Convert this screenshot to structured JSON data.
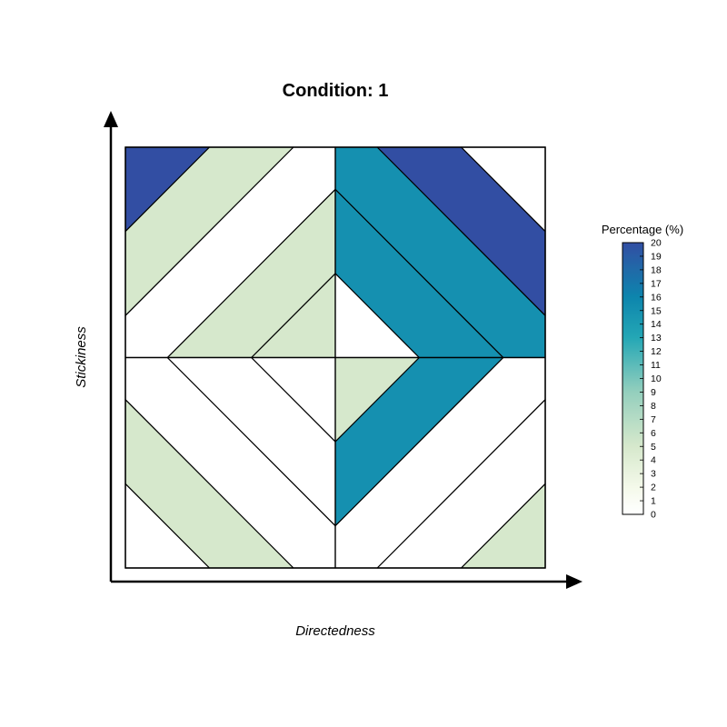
{
  "chart_data": {
    "type": "heatmap",
    "title": "Condition: 1",
    "xlabel": "Directedness",
    "ylabel": "Stickiness",
    "legend": {
      "title": "Percentage (%)",
      "placement": "right",
      "min": 0,
      "max": 20,
      "ticks": [
        "0",
        "1",
        "2",
        "3",
        "4",
        "5",
        "6",
        "7",
        "8",
        "9",
        "10",
        "11",
        "12",
        "13",
        "14",
        "15",
        "16",
        "17",
        "18",
        "19",
        "20"
      ]
    },
    "xlim": [
      -1,
      1
    ],
    "ylim": [
      -1,
      1
    ],
    "colorscale": [
      {
        "v": 0,
        "color": "#ffffff"
      },
      {
        "v": 2,
        "color": "#f4f9ea"
      },
      {
        "v": 5,
        "color": "#d6e8cc"
      },
      {
        "v": 9,
        "color": "#94cfbd"
      },
      {
        "v": 13,
        "color": "#24a7b5"
      },
      {
        "v": 16,
        "color": "#0d85ad"
      },
      {
        "v": 20,
        "color": "#324ea3"
      }
    ],
    "quadrants": [
      {
        "name": "top-left",
        "sx": -1,
        "sy": 1,
        "bands": [
          5,
          5,
          0,
          5,
          20,
          0
        ]
      },
      {
        "name": "top-right",
        "sx": 1,
        "sy": 1,
        "bands": [
          0,
          15,
          15,
          20,
          0,
          0
        ]
      },
      {
        "name": "bottom-left",
        "sx": -1,
        "sy": -1,
        "bands": [
          0,
          0,
          0,
          5,
          0,
          0
        ]
      },
      {
        "name": "bottom-right",
        "sx": 1,
        "sy": -1,
        "bands": [
          5,
          15,
          0,
          0,
          5,
          5
        ]
      }
    ],
    "band_width": 0.4
  }
}
